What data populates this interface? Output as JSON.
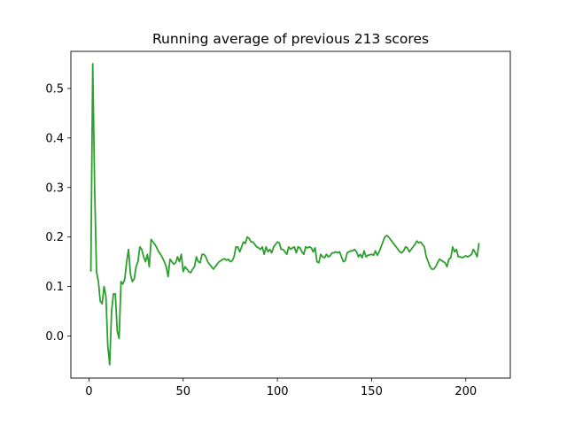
{
  "chart_data": {
    "type": "line",
    "title": "Running average of previous 213 scores",
    "xlabel": "",
    "ylabel": "",
    "xlim": [
      -9.6,
      223.6
    ],
    "ylim": [
      -0.085,
      0.575
    ],
    "xticks": [
      0,
      50,
      100,
      150,
      200
    ],
    "yticks": [
      0.0,
      0.1,
      0.2,
      0.3,
      0.4,
      0.5
    ],
    "xtick_labels": [
      "0",
      "50",
      "100",
      "150",
      "200"
    ],
    "ytick_labels": [
      "0.0",
      "0.1",
      "0.2",
      "0.3",
      "0.4",
      "0.5"
    ],
    "grid": false,
    "legend": "none",
    "series": [
      {
        "color": "#2ca02c",
        "points": [
          [
            1,
            0.13
          ],
          [
            2,
            0.55
          ],
          [
            3,
            0.3
          ],
          [
            4,
            0.13
          ],
          [
            5,
            0.11
          ],
          [
            6,
            0.07
          ],
          [
            7,
            0.065
          ],
          [
            8,
            0.1
          ],
          [
            9,
            0.08
          ],
          [
            10,
            -0.02
          ],
          [
            11,
            -0.058
          ],
          [
            12,
            0.05
          ],
          [
            13,
            0.085
          ],
          [
            14,
            0.085
          ],
          [
            15,
            0.01
          ],
          [
            16,
            -0.005
          ],
          [
            17,
            0.11
          ],
          [
            18,
            0.105
          ],
          [
            19,
            0.115
          ],
          [
            20,
            0.15
          ],
          [
            21,
            0.175
          ],
          [
            22,
            0.125
          ],
          [
            23,
            0.11
          ],
          [
            24,
            0.115
          ],
          [
            25,
            0.14
          ],
          [
            26,
            0.15
          ],
          [
            27,
            0.18
          ],
          [
            28,
            0.175
          ],
          [
            29,
            0.16
          ],
          [
            30,
            0.15
          ],
          [
            31,
            0.165
          ],
          [
            32,
            0.14
          ],
          [
            33,
            0.195
          ],
          [
            34,
            0.19
          ],
          [
            35,
            0.185
          ],
          [
            36,
            0.178
          ],
          [
            37,
            0.17
          ],
          [
            38,
            0.165
          ],
          [
            39,
            0.158
          ],
          [
            40,
            0.15
          ],
          [
            41,
            0.14
          ],
          [
            42,
            0.12
          ],
          [
            43,
            0.155
          ],
          [
            44,
            0.15
          ],
          [
            45,
            0.145
          ],
          [
            46,
            0.148
          ],
          [
            47,
            0.16
          ],
          [
            48,
            0.15
          ],
          [
            49,
            0.165
          ],
          [
            50,
            0.13
          ],
          [
            51,
            0.14
          ],
          [
            52,
            0.135
          ],
          [
            53,
            0.13
          ],
          [
            54,
            0.128
          ],
          [
            55,
            0.135
          ],
          [
            56,
            0.14
          ],
          [
            57,
            0.16
          ],
          [
            58,
            0.15
          ],
          [
            59,
            0.148
          ],
          [
            60,
            0.165
          ],
          [
            61,
            0.165
          ],
          [
            62,
            0.16
          ],
          [
            63,
            0.15
          ],
          [
            64,
            0.145
          ],
          [
            65,
            0.14
          ],
          [
            66,
            0.135
          ],
          [
            67,
            0.14
          ],
          [
            68,
            0.145
          ],
          [
            69,
            0.15
          ],
          [
            70,
            0.152
          ],
          [
            71,
            0.155
          ],
          [
            72,
            0.156
          ],
          [
            73,
            0.153
          ],
          [
            74,
            0.155
          ],
          [
            75,
            0.15
          ],
          [
            76,
            0.152
          ],
          [
            77,
            0.16
          ],
          [
            78,
            0.18
          ],
          [
            79,
            0.18
          ],
          [
            80,
            0.17
          ],
          [
            81,
            0.18
          ],
          [
            82,
            0.19
          ],
          [
            83,
            0.187
          ],
          [
            84,
            0.2
          ],
          [
            85,
            0.197
          ],
          [
            86,
            0.19
          ],
          [
            87,
            0.19
          ],
          [
            88,
            0.185
          ],
          [
            89,
            0.18
          ],
          [
            90,
            0.178
          ],
          [
            91,
            0.175
          ],
          [
            92,
            0.18
          ],
          [
            93,
            0.165
          ],
          [
            94,
            0.18
          ],
          [
            95,
            0.17
          ],
          [
            96,
            0.175
          ],
          [
            97,
            0.168
          ],
          [
            98,
            0.18
          ],
          [
            99,
            0.185
          ],
          [
            100,
            0.19
          ],
          [
            101,
            0.188
          ],
          [
            102,
            0.175
          ],
          [
            103,
            0.175
          ],
          [
            104,
            0.17
          ],
          [
            105,
            0.165
          ],
          [
            106,
            0.18
          ],
          [
            107,
            0.175
          ],
          [
            108,
            0.178
          ],
          [
            109,
            0.18
          ],
          [
            110,
            0.168
          ],
          [
            111,
            0.18
          ],
          [
            112,
            0.178
          ],
          [
            113,
            0.17
          ],
          [
            114,
            0.165
          ],
          [
            115,
            0.18
          ],
          [
            116,
            0.178
          ],
          [
            117,
            0.18
          ],
          [
            118,
            0.178
          ],
          [
            119,
            0.17
          ],
          [
            120,
            0.178
          ],
          [
            121,
            0.15
          ],
          [
            122,
            0.148
          ],
          [
            123,
            0.165
          ],
          [
            124,
            0.16
          ],
          [
            125,
            0.158
          ],
          [
            126,
            0.165
          ],
          [
            127,
            0.16
          ],
          [
            128,
            0.162
          ],
          [
            129,
            0.168
          ],
          [
            130,
            0.168
          ],
          [
            131,
            0.17
          ],
          [
            132,
            0.168
          ],
          [
            133,
            0.17
          ],
          [
            134,
            0.16
          ],
          [
            135,
            0.15
          ],
          [
            136,
            0.152
          ],
          [
            137,
            0.168
          ],
          [
            138,
            0.17
          ],
          [
            139,
            0.172
          ],
          [
            140,
            0.172
          ],
          [
            141,
            0.175
          ],
          [
            142,
            0.17
          ],
          [
            143,
            0.16
          ],
          [
            144,
            0.165
          ],
          [
            145,
            0.158
          ],
          [
            146,
            0.172
          ],
          [
            147,
            0.16
          ],
          [
            148,
            0.163
          ],
          [
            149,
            0.164
          ],
          [
            150,
            0.165
          ],
          [
            151,
            0.163
          ],
          [
            152,
            0.172
          ],
          [
            153,
            0.163
          ],
          [
            154,
            0.17
          ],
          [
            155,
            0.18
          ],
          [
            156,
            0.19
          ],
          [
            157,
            0.2
          ],
          [
            158,
            0.203
          ],
          [
            159,
            0.2
          ],
          [
            160,
            0.195
          ],
          [
            161,
            0.19
          ],
          [
            162,
            0.185
          ],
          [
            163,
            0.18
          ],
          [
            164,
            0.175
          ],
          [
            165,
            0.17
          ],
          [
            166,
            0.168
          ],
          [
            167,
            0.172
          ],
          [
            168,
            0.18
          ],
          [
            169,
            0.178
          ],
          [
            170,
            0.17
          ],
          [
            171,
            0.175
          ],
          [
            172,
            0.18
          ],
          [
            173,
            0.185
          ],
          [
            174,
            0.192
          ],
          [
            175,
            0.188
          ],
          [
            176,
            0.19
          ],
          [
            177,
            0.185
          ],
          [
            178,
            0.18
          ],
          [
            179,
            0.16
          ],
          [
            180,
            0.15
          ],
          [
            181,
            0.14
          ],
          [
            182,
            0.135
          ],
          [
            183,
            0.135
          ],
          [
            184,
            0.14
          ],
          [
            185,
            0.148
          ],
          [
            186,
            0.155
          ],
          [
            187,
            0.153
          ],
          [
            188,
            0.15
          ],
          [
            189,
            0.148
          ],
          [
            190,
            0.14
          ],
          [
            191,
            0.155
          ],
          [
            192,
            0.158
          ],
          [
            193,
            0.18
          ],
          [
            194,
            0.17
          ],
          [
            195,
            0.175
          ],
          [
            196,
            0.16
          ],
          [
            197,
            0.16
          ],
          [
            198,
            0.158
          ],
          [
            199,
            0.16
          ],
          [
            200,
            0.162
          ],
          [
            201,
            0.16
          ],
          [
            202,
            0.162
          ],
          [
            203,
            0.165
          ],
          [
            204,
            0.175
          ],
          [
            205,
            0.168
          ],
          [
            206,
            0.16
          ],
          [
            207,
            0.188
          ]
        ]
      }
    ]
  }
}
